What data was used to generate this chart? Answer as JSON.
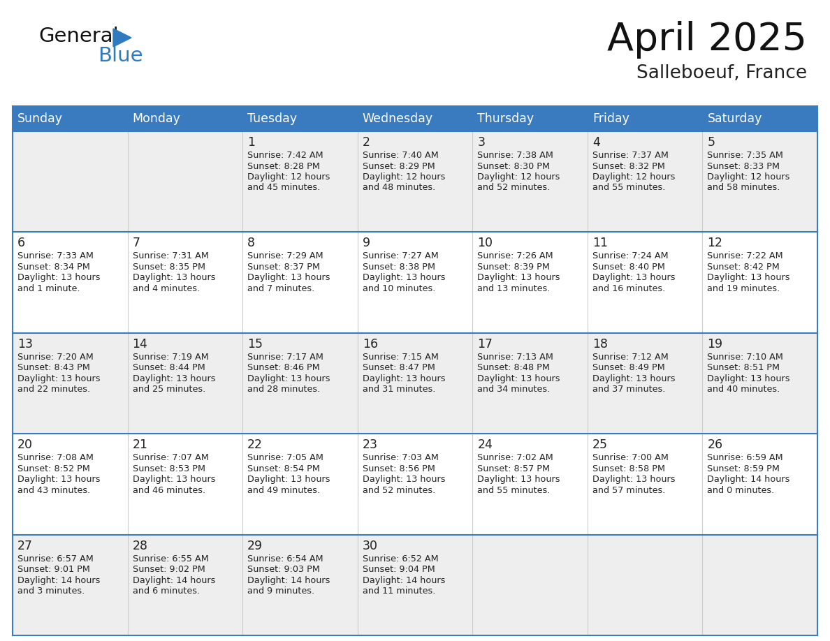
{
  "title": "April 2025",
  "subtitle": "Salleboeuf, France",
  "days_of_week": [
    "Sunday",
    "Monday",
    "Tuesday",
    "Wednesday",
    "Thursday",
    "Friday",
    "Saturday"
  ],
  "header_bg": "#3a7abf",
  "header_text": "#ffffff",
  "row_bg_light": "#eeeeee",
  "row_bg_white": "#ffffff",
  "cell_border_color": "#3a7abf",
  "day_number_color": "#222222",
  "cell_text_color": "#222222",
  "logo_general_color": "#111111",
  "logo_blue_color": "#2e7bbf",
  "title_color": "#111111",
  "subtitle_color": "#222222",
  "calendar_data": [
    [
      {
        "day": "",
        "lines": []
      },
      {
        "day": "",
        "lines": []
      },
      {
        "day": "1",
        "lines": [
          "Sunrise: 7:42 AM",
          "Sunset: 8:28 PM",
          "Daylight: 12 hours",
          "and 45 minutes."
        ]
      },
      {
        "day": "2",
        "lines": [
          "Sunrise: 7:40 AM",
          "Sunset: 8:29 PM",
          "Daylight: 12 hours",
          "and 48 minutes."
        ]
      },
      {
        "day": "3",
        "lines": [
          "Sunrise: 7:38 AM",
          "Sunset: 8:30 PM",
          "Daylight: 12 hours",
          "and 52 minutes."
        ]
      },
      {
        "day": "4",
        "lines": [
          "Sunrise: 7:37 AM",
          "Sunset: 8:32 PM",
          "Daylight: 12 hours",
          "and 55 minutes."
        ]
      },
      {
        "day": "5",
        "lines": [
          "Sunrise: 7:35 AM",
          "Sunset: 8:33 PM",
          "Daylight: 12 hours",
          "and 58 minutes."
        ]
      }
    ],
    [
      {
        "day": "6",
        "lines": [
          "Sunrise: 7:33 AM",
          "Sunset: 8:34 PM",
          "Daylight: 13 hours",
          "and 1 minute."
        ]
      },
      {
        "day": "7",
        "lines": [
          "Sunrise: 7:31 AM",
          "Sunset: 8:35 PM",
          "Daylight: 13 hours",
          "and 4 minutes."
        ]
      },
      {
        "day": "8",
        "lines": [
          "Sunrise: 7:29 AM",
          "Sunset: 8:37 PM",
          "Daylight: 13 hours",
          "and 7 minutes."
        ]
      },
      {
        "day": "9",
        "lines": [
          "Sunrise: 7:27 AM",
          "Sunset: 8:38 PM",
          "Daylight: 13 hours",
          "and 10 minutes."
        ]
      },
      {
        "day": "10",
        "lines": [
          "Sunrise: 7:26 AM",
          "Sunset: 8:39 PM",
          "Daylight: 13 hours",
          "and 13 minutes."
        ]
      },
      {
        "day": "11",
        "lines": [
          "Sunrise: 7:24 AM",
          "Sunset: 8:40 PM",
          "Daylight: 13 hours",
          "and 16 minutes."
        ]
      },
      {
        "day": "12",
        "lines": [
          "Sunrise: 7:22 AM",
          "Sunset: 8:42 PM",
          "Daylight: 13 hours",
          "and 19 minutes."
        ]
      }
    ],
    [
      {
        "day": "13",
        "lines": [
          "Sunrise: 7:20 AM",
          "Sunset: 8:43 PM",
          "Daylight: 13 hours",
          "and 22 minutes."
        ]
      },
      {
        "day": "14",
        "lines": [
          "Sunrise: 7:19 AM",
          "Sunset: 8:44 PM",
          "Daylight: 13 hours",
          "and 25 minutes."
        ]
      },
      {
        "day": "15",
        "lines": [
          "Sunrise: 7:17 AM",
          "Sunset: 8:46 PM",
          "Daylight: 13 hours",
          "and 28 minutes."
        ]
      },
      {
        "day": "16",
        "lines": [
          "Sunrise: 7:15 AM",
          "Sunset: 8:47 PM",
          "Daylight: 13 hours",
          "and 31 minutes."
        ]
      },
      {
        "day": "17",
        "lines": [
          "Sunrise: 7:13 AM",
          "Sunset: 8:48 PM",
          "Daylight: 13 hours",
          "and 34 minutes."
        ]
      },
      {
        "day": "18",
        "lines": [
          "Sunrise: 7:12 AM",
          "Sunset: 8:49 PM",
          "Daylight: 13 hours",
          "and 37 minutes."
        ]
      },
      {
        "day": "19",
        "lines": [
          "Sunrise: 7:10 AM",
          "Sunset: 8:51 PM",
          "Daylight: 13 hours",
          "and 40 minutes."
        ]
      }
    ],
    [
      {
        "day": "20",
        "lines": [
          "Sunrise: 7:08 AM",
          "Sunset: 8:52 PM",
          "Daylight: 13 hours",
          "and 43 minutes."
        ]
      },
      {
        "day": "21",
        "lines": [
          "Sunrise: 7:07 AM",
          "Sunset: 8:53 PM",
          "Daylight: 13 hours",
          "and 46 minutes."
        ]
      },
      {
        "day": "22",
        "lines": [
          "Sunrise: 7:05 AM",
          "Sunset: 8:54 PM",
          "Daylight: 13 hours",
          "and 49 minutes."
        ]
      },
      {
        "day": "23",
        "lines": [
          "Sunrise: 7:03 AM",
          "Sunset: 8:56 PM",
          "Daylight: 13 hours",
          "and 52 minutes."
        ]
      },
      {
        "day": "24",
        "lines": [
          "Sunrise: 7:02 AM",
          "Sunset: 8:57 PM",
          "Daylight: 13 hours",
          "and 55 minutes."
        ]
      },
      {
        "day": "25",
        "lines": [
          "Sunrise: 7:00 AM",
          "Sunset: 8:58 PM",
          "Daylight: 13 hours",
          "and 57 minutes."
        ]
      },
      {
        "day": "26",
        "lines": [
          "Sunrise: 6:59 AM",
          "Sunset: 8:59 PM",
          "Daylight: 14 hours",
          "and 0 minutes."
        ]
      }
    ],
    [
      {
        "day": "27",
        "lines": [
          "Sunrise: 6:57 AM",
          "Sunset: 9:01 PM",
          "Daylight: 14 hours",
          "and 3 minutes."
        ]
      },
      {
        "day": "28",
        "lines": [
          "Sunrise: 6:55 AM",
          "Sunset: 9:02 PM",
          "Daylight: 14 hours",
          "and 6 minutes."
        ]
      },
      {
        "day": "29",
        "lines": [
          "Sunrise: 6:54 AM",
          "Sunset: 9:03 PM",
          "Daylight: 14 hours",
          "and 9 minutes."
        ]
      },
      {
        "day": "30",
        "lines": [
          "Sunrise: 6:52 AM",
          "Sunset: 9:04 PM",
          "Daylight: 14 hours",
          "and 11 minutes."
        ]
      },
      {
        "day": "",
        "lines": []
      },
      {
        "day": "",
        "lines": []
      },
      {
        "day": "",
        "lines": []
      }
    ]
  ]
}
